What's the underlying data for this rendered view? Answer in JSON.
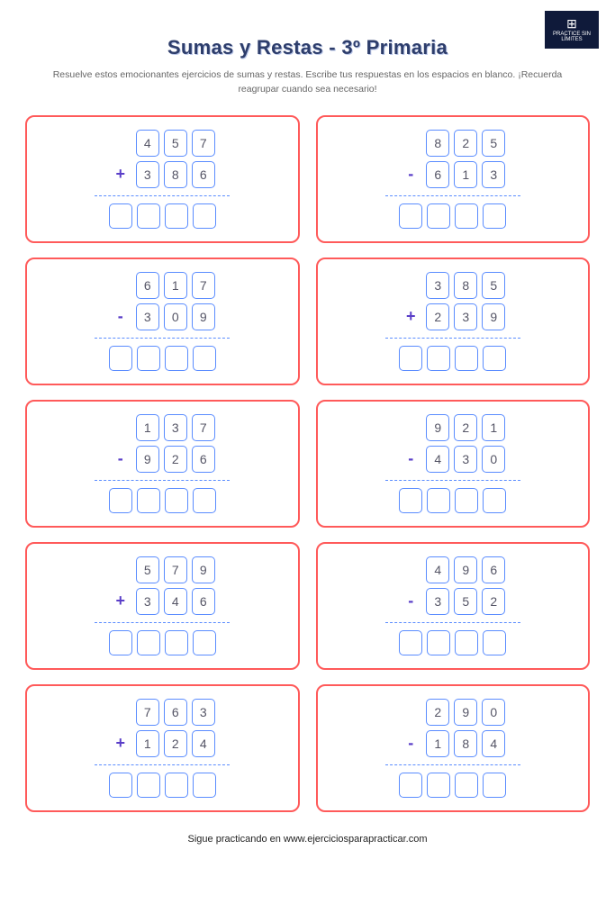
{
  "badge": {
    "text": "PRACTICE SIN LÍMITES"
  },
  "title": "Sumas y Restas - 3º Primaria",
  "subtitle": "Resuelve estos emocionantes ejercicios de sumas y restas. Escribe tus respuestas en los espacios en blanco. ¡Recuerda reagrupar cuando sea necesario!",
  "footer": "Sigue practicando en www.ejerciciosparapracticar.com",
  "styling": {
    "card_border_color": "#ff5a5a",
    "digit_border_color": "#5a8cff",
    "operator_color": "#5a3ec8",
    "title_color": "#2d3d6b",
    "answer_digit_count": 4
  },
  "problems": [
    {
      "operator": "+",
      "top": [
        "4",
        "5",
        "7"
      ],
      "bottom": [
        "3",
        "8",
        "6"
      ]
    },
    {
      "operator": "-",
      "top": [
        "8",
        "2",
        "5"
      ],
      "bottom": [
        "6",
        "1",
        "3"
      ]
    },
    {
      "operator": "-",
      "top": [
        "6",
        "1",
        "7"
      ],
      "bottom": [
        "3",
        "0",
        "9"
      ]
    },
    {
      "operator": "+",
      "top": [
        "3",
        "8",
        "5"
      ],
      "bottom": [
        "2",
        "3",
        "9"
      ]
    },
    {
      "operator": "-",
      "top": [
        "1",
        "3",
        "7"
      ],
      "bottom": [
        "9",
        "2",
        "6"
      ]
    },
    {
      "operator": "-",
      "top": [
        "9",
        "2",
        "1"
      ],
      "bottom": [
        "4",
        "3",
        "0"
      ]
    },
    {
      "operator": "+",
      "top": [
        "5",
        "7",
        "9"
      ],
      "bottom": [
        "3",
        "4",
        "6"
      ]
    },
    {
      "operator": "-",
      "top": [
        "4",
        "9",
        "6"
      ],
      "bottom": [
        "3",
        "5",
        "2"
      ]
    },
    {
      "operator": "+",
      "top": [
        "7",
        "6",
        "3"
      ],
      "bottom": [
        "1",
        "2",
        "4"
      ]
    },
    {
      "operator": "-",
      "top": [
        "2",
        "9",
        "0"
      ],
      "bottom": [
        "1",
        "8",
        "4"
      ]
    }
  ]
}
